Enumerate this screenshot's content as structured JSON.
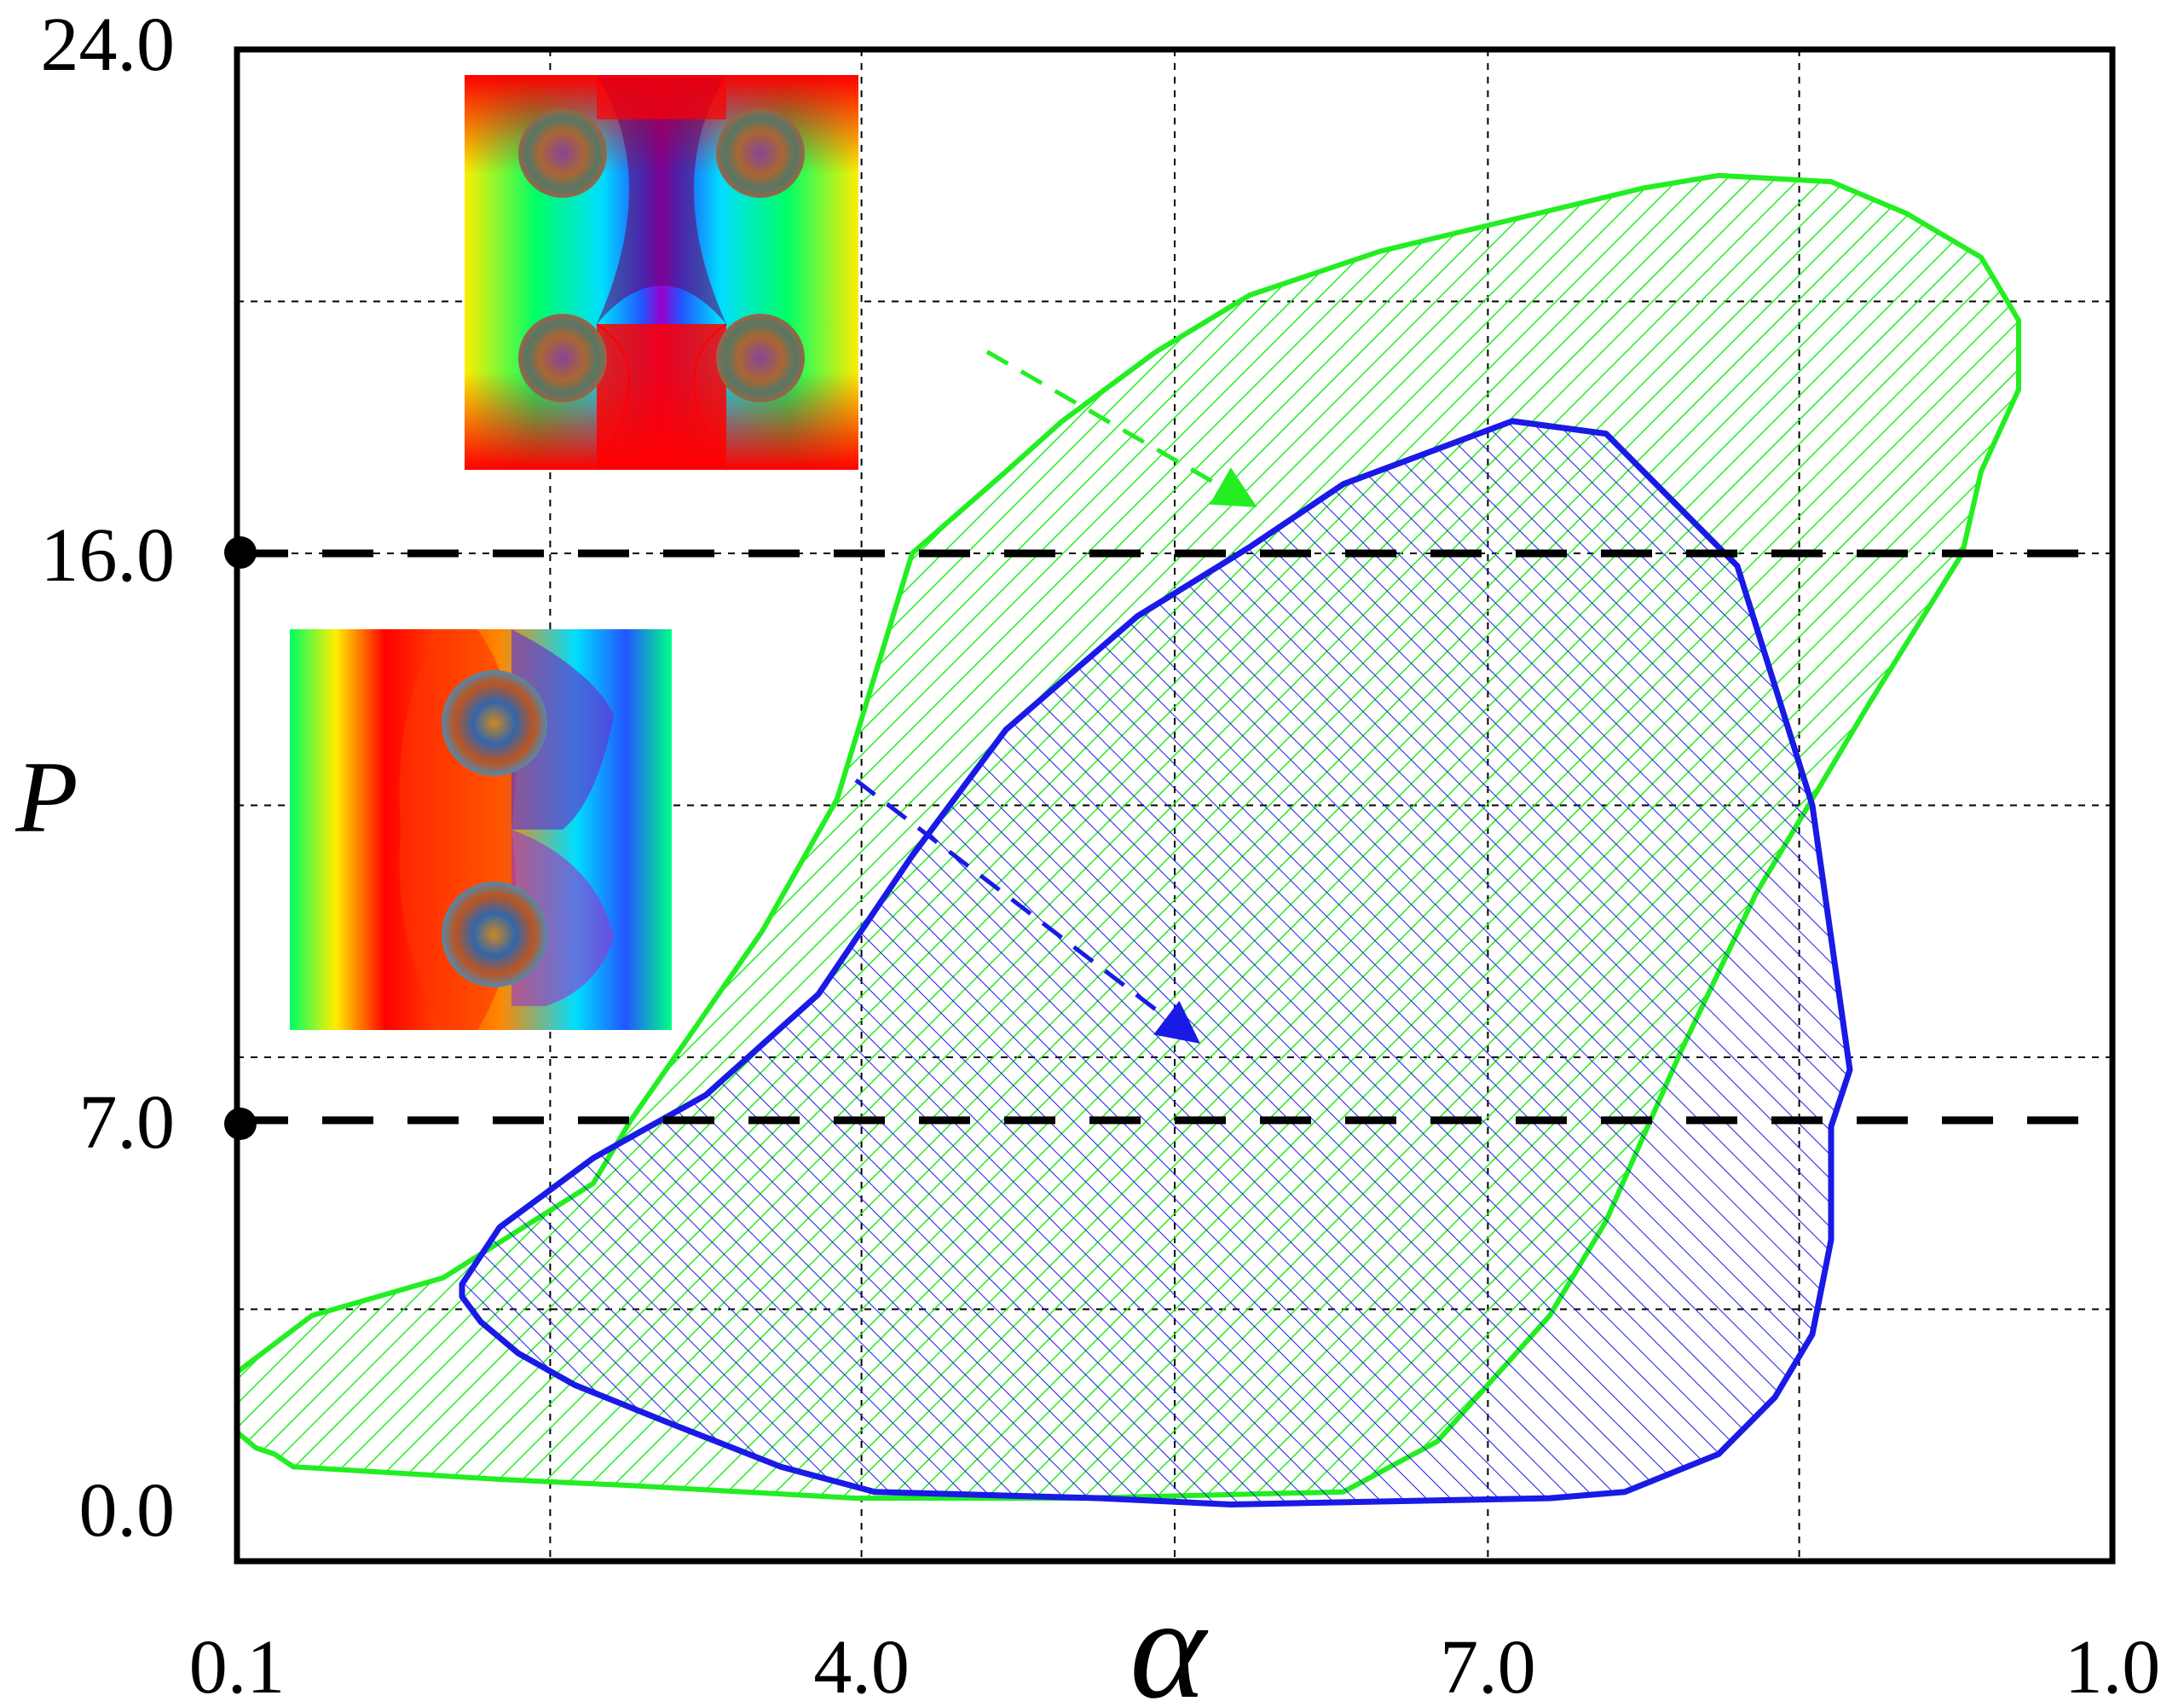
{
  "chart_data": {
    "type": "area",
    "title": "",
    "xlabel": "α",
    "ylabel": "P",
    "x_tick_labels": [
      "0.1",
      "4.0",
      "7.0",
      "1.0"
    ],
    "y_tick_labels": [
      "0.0",
      "7.0",
      "16.0",
      "24.0"
    ],
    "reference_lines": [
      {
        "axis": "y",
        "value": 16.0,
        "style": "dashed",
        "color": "#000000"
      },
      {
        "axis": "y",
        "value": 7.0,
        "style": "dashed",
        "color": "#000000"
      }
    ],
    "grid": true,
    "series": [
      {
        "fill": "hatched",
        "color": "#22ee22",
        "points": [
          [
            0.1,
            1.8
          ],
          [
            0.2,
            1.7
          ],
          [
            0.3,
            1.5
          ],
          [
            1.4,
            1.3
          ],
          [
            2.1,
            1.2
          ],
          [
            3.3,
            1.0
          ],
          [
            4.5,
            1.0
          ],
          [
            5.9,
            1.1
          ],
          [
            6.4,
            1.9
          ],
          [
            6.7,
            2.9
          ],
          [
            7.0,
            3.9
          ],
          [
            7.3,
            5.4
          ],
          [
            7.7,
            8.1
          ],
          [
            8.1,
            10.6
          ],
          [
            8.7,
            13.6
          ],
          [
            9.2,
            16.0
          ],
          [
            9.3,
            17.3
          ],
          [
            9.5,
            18.6
          ],
          [
            9.5,
            19.7
          ],
          [
            9.4,
            20.2
          ],
          [
            9.3,
            20.7
          ],
          [
            8.9,
            21.4
          ],
          [
            8.5,
            21.9
          ],
          [
            7.9,
            22.0
          ],
          [
            7.5,
            21.8
          ],
          [
            6.8,
            21.3
          ],
          [
            6.1,
            20.8
          ],
          [
            5.4,
            20.1
          ],
          [
            4.9,
            19.2
          ],
          [
            4.4,
            18.1
          ],
          [
            4.1,
            17.3
          ],
          [
            3.6,
            16.0
          ],
          [
            3.2,
            12.1
          ],
          [
            2.8,
            10.0
          ],
          [
            2.1,
            7.0
          ],
          [
            1.9,
            6.0
          ],
          [
            1.1,
            4.5
          ],
          [
            0.4,
            3.9
          ],
          [
            0.0,
            3.0
          ],
          [
            -0.1,
            2.3
          ]
        ]
      },
      {
        "fill": "cross-hatched",
        "color": "#1a1ae6",
        "points": [
          [
            1.2,
            4.4
          ],
          [
            1.2,
            4.2
          ],
          [
            1.3,
            3.8
          ],
          [
            1.5,
            3.3
          ],
          [
            1.8,
            2.8
          ],
          [
            2.3,
            2.2
          ],
          [
            2.9,
            1.5
          ],
          [
            3.4,
            1.1
          ],
          [
            4.6,
            1.0
          ],
          [
            5.3,
            0.9
          ],
          [
            7.0,
            1.0
          ],
          [
            7.4,
            1.1
          ],
          [
            7.9,
            1.7
          ],
          [
            8.2,
            2.6
          ],
          [
            8.4,
            3.6
          ],
          [
            8.5,
            5.1
          ],
          [
            8.5,
            6.9
          ],
          [
            8.6,
            7.8
          ],
          [
            8.4,
            12.0
          ],
          [
            8.0,
            15.8
          ],
          [
            7.5,
            17.3
          ],
          [
            7.3,
            17.9
          ],
          [
            6.8,
            18.1
          ],
          [
            5.9,
            17.1
          ],
          [
            5.4,
            16.1
          ],
          [
            4.8,
            15.0
          ],
          [
            4.1,
            13.2
          ],
          [
            3.6,
            11.2
          ],
          [
            3.1,
            9.0
          ],
          [
            2.5,
            7.4
          ],
          [
            1.9,
            6.4
          ],
          [
            1.4,
            5.3
          ]
        ]
      }
    ],
    "annotations": [
      {
        "type": "arrow",
        "style": "dashed",
        "color": "#22ee22",
        "from": [
          4.0,
          19.2
        ],
        "to": [
          5.4,
          16.8
        ]
      },
      {
        "type": "arrow",
        "style": "dashed",
        "color": "#1a1ae6",
        "from": [
          3.3,
          12.4
        ],
        "to": [
          5.1,
          8.3
        ]
      },
      {
        "type": "inset",
        "content": "phase map with four vortices",
        "anchor": "upper",
        "colors": [
          "#ff0000",
          "#ffee00",
          "#00ff66",
          "#00ddff",
          "#2255ff",
          "#9900cc"
        ]
      },
      {
        "type": "inset",
        "content": "phase map with two vortices",
        "anchor": "middle",
        "colors": [
          "#ff0000",
          "#ffee00",
          "#00ff66",
          "#00ddff",
          "#2255ff",
          "#9900cc"
        ]
      }
    ]
  }
}
